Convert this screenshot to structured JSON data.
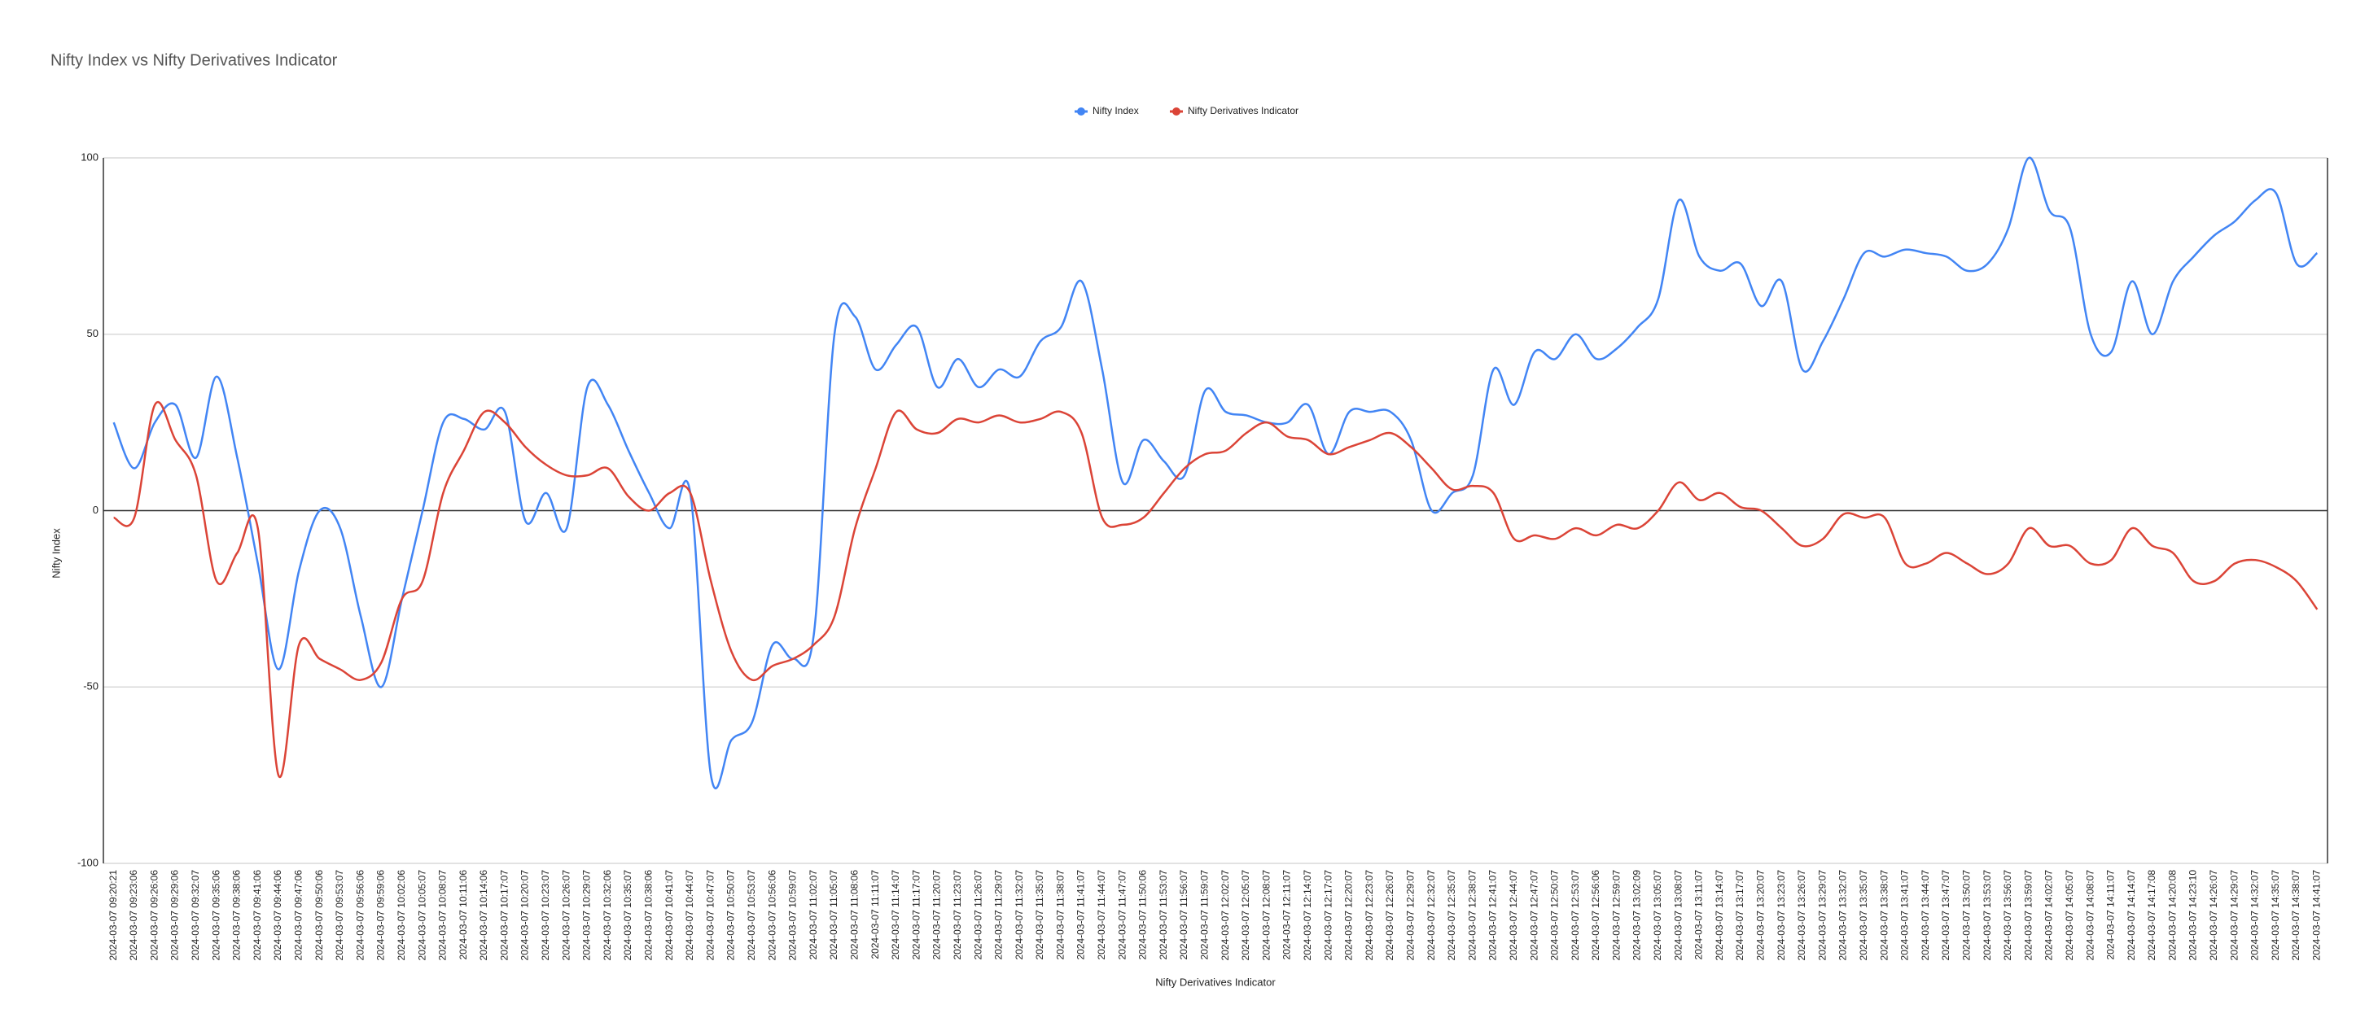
{
  "chart_data": {
    "type": "line",
    "title": "Nifty Index vs Nifty Derivatives Indicator",
    "x_label": "Nifty Derivatives Indicator",
    "y_label": "Nifty Index",
    "categories": [
      "2024-03-07 09:20:21",
      "2024-03-07 09:23:06",
      "2024-03-07 09:26:06",
      "2024-03-07 09:29:06",
      "2024-03-07 09:32:07",
      "2024-03-07 09:35:06",
      "2024-03-07 09:38:06",
      "2024-03-07 09:41:06",
      "2024-03-07 09:44:06",
      "2024-03-07 09:47:06",
      "2024-03-07 09:50:06",
      "2024-03-07 09:53:07",
      "2024-03-07 09:56:06",
      "2024-03-07 09:59:06",
      "2024-03-07 10:02:06",
      "2024-03-07 10:05:07",
      "2024-03-07 10:08:07",
      "2024-03-07 10:11:06",
      "2024-03-07 10:14:06",
      "2024-03-07 10:17:07",
      "2024-03-07 10:20:07",
      "2024-03-07 10:23:07",
      "2024-03-07 10:26:07",
      "2024-03-07 10:29:07",
      "2024-03-07 10:32:06",
      "2024-03-07 10:35:07",
      "2024-03-07 10:38:06",
      "2024-03-07 10:41:07",
      "2024-03-07 10:44:07",
      "2024-03-07 10:47:07",
      "2024-03-07 10:50:07",
      "2024-03-07 10:53:07",
      "2024-03-07 10:56:06",
      "2024-03-07 10:59:07",
      "2024-03-07 11:02:07",
      "2024-03-07 11:05:07",
      "2024-03-07 11:08:06",
      "2024-03-07 11:11:07",
      "2024-03-07 11:14:07",
      "2024-03-07 11:17:07",
      "2024-03-07 11:20:07",
      "2024-03-07 11:23:07",
      "2024-03-07 11:26:07",
      "2024-03-07 11:29:07",
      "2024-03-07 11:32:07",
      "2024-03-07 11:35:07",
      "2024-03-07 11:38:07",
      "2024-03-07 11:41:07",
      "2024-03-07 11:44:07",
      "2024-03-07 11:47:07",
      "2024-03-07 11:50:06",
      "2024-03-07 11:53:07",
      "2024-03-07 11:56:07",
      "2024-03-07 11:59:07",
      "2024-03-07 12:02:07",
      "2024-03-07 12:05:07",
      "2024-03-07 12:08:07",
      "2024-03-07 12:11:07",
      "2024-03-07 12:14:07",
      "2024-03-07 12:17:07",
      "2024-03-07 12:20:07",
      "2024-03-07 12:23:07",
      "2024-03-07 12:26:07",
      "2024-03-07 12:29:07",
      "2024-03-07 12:32:07",
      "2024-03-07 12:35:07",
      "2024-03-07 12:38:07",
      "2024-03-07 12:41:07",
      "2024-03-07 12:44:07",
      "2024-03-07 12:47:07",
      "2024-03-07 12:50:07",
      "2024-03-07 12:53:07",
      "2024-03-07 12:56:06",
      "2024-03-07 12:59:07",
      "2024-03-07 13:02:09",
      "2024-03-07 13:05:07",
      "2024-03-07 13:08:07",
      "2024-03-07 13:11:07",
      "2024-03-07 13:14:07",
      "2024-03-07 13:17:07",
      "2024-03-07 13:20:07",
      "2024-03-07 13:23:07",
      "2024-03-07 13:26:07",
      "2024-03-07 13:29:07",
      "2024-03-07 13:32:07",
      "2024-03-07 13:35:07",
      "2024-03-07 13:38:07",
      "2024-03-07 13:41:07",
      "2024-03-07 13:44:07",
      "2024-03-07 13:47:07",
      "2024-03-07 13:50:07",
      "2024-03-07 13:53:07",
      "2024-03-07 13:56:07",
      "2024-03-07 13:59:07",
      "2024-03-07 14:02:07",
      "2024-03-07 14:05:07",
      "2024-03-07 14:08:07",
      "2024-03-07 14:11:07",
      "2024-03-07 14:14:07",
      "2024-03-07 14:17:08",
      "2024-03-07 14:20:08",
      "2024-03-07 14:23:10",
      "2024-03-07 14:26:07",
      "2024-03-07 14:29:07",
      "2024-03-07 14:32:07",
      "2024-03-07 14:35:07",
      "2024-03-07 14:38:07",
      "2024-03-07 14:41:07"
    ],
    "series": [
      {
        "name": "Nifty Index",
        "color": "#4285f4",
        "values": [
          25,
          12,
          25,
          30,
          15,
          38,
          15,
          -15,
          -45,
          -17,
          0,
          -5,
          -30,
          -50,
          -25,
          0,
          25,
          26,
          23,
          28,
          -3,
          5,
          -5,
          35,
          30,
          17,
          5,
          -5,
          5,
          -75,
          -65,
          -60,
          -38,
          -42,
          -35,
          50,
          55,
          40,
          47,
          52,
          35,
          43,
          35,
          40,
          38,
          48,
          52,
          65,
          40,
          8,
          20,
          14,
          10,
          34,
          28,
          27,
          25,
          25,
          30,
          16,
          28,
          28,
          28,
          20,
          0,
          5,
          10,
          40,
          30,
          45,
          43,
          50,
          43,
          46,
          52,
          60,
          88,
          72,
          68,
          70,
          58,
          65,
          40,
          48,
          60,
          73,
          72,
          74,
          73,
          72,
          68,
          70,
          80,
          100,
          85,
          80,
          50,
          45,
          65,
          50,
          65,
          72,
          78,
          82,
          88,
          90,
          70,
          73
        ]
      },
      {
        "name": "Nifty Derivatives Indicator",
        "color": "#db4437",
        "values": [
          -2,
          -2,
          30,
          20,
          10,
          -20,
          -12,
          -5,
          -75,
          -38,
          -42,
          -45,
          -48,
          -43,
          -25,
          -20,
          5,
          17,
          28,
          25,
          18,
          13,
          10,
          10,
          12,
          4,
          0,
          5,
          5,
          -20,
          -40,
          -48,
          -44,
          -42,
          -38,
          -30,
          -5,
          12,
          28,
          23,
          22,
          26,
          25,
          27,
          25,
          26,
          28,
          22,
          -2,
          -4,
          -2,
          5,
          12,
          16,
          17,
          22,
          25,
          21,
          20,
          16,
          18,
          20,
          22,
          18,
          12,
          6,
          7,
          5,
          -8,
          -7,
          -8,
          -5,
          -7,
          -4,
          -5,
          0,
          8,
          3,
          5,
          1,
          0,
          -5,
          -10,
          -8,
          -1,
          -2,
          -2,
          -15,
          -15,
          -12,
          -15,
          -18,
          -15,
          -5,
          -10,
          -10,
          -15,
          -14,
          -5,
          -10,
          -12,
          -20,
          -20,
          -15,
          -14,
          -16,
          -20,
          -28
        ]
      }
    ],
    "ylim": [
      -100,
      100
    ],
    "yticks": [
      -100,
      -50,
      0,
      50,
      100
    ],
    "grid": true,
    "legend": "top",
    "smooth": true
  }
}
